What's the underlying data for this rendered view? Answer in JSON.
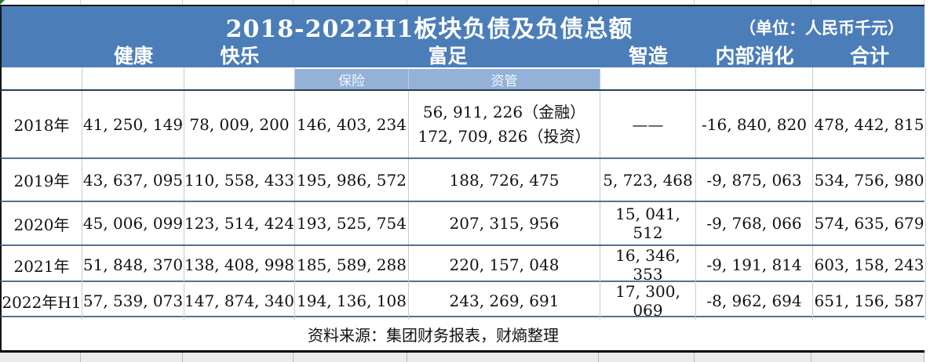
{
  "header": {
    "title": "2018-2022H1板块负债及负债总额",
    "unit": "（单位：人民币千元）"
  },
  "columns": {
    "health": "健康",
    "happiness": "快乐",
    "wealth": "富足",
    "manufacturing": "智造",
    "internal": "内部消化",
    "total": "合计"
  },
  "subheaders": {
    "insurance": "保险",
    "asset_management": "资管"
  },
  "rows": [
    {
      "year": "2018年",
      "health": "41, 250, 149",
      "happiness": "78, 009, 200",
      "insurance": "146, 403, 234",
      "asset_line1": "56, 911, 226（金融）",
      "asset_line2": "172, 709, 826（投资）",
      "manufacturing": "——",
      "internal": "-16, 840, 820",
      "total": "478, 442, 815"
    },
    {
      "year": "2019年",
      "health": "43, 637, 095",
      "happiness": "110, 558, 433",
      "insurance": "195, 986, 572",
      "asset": "188, 726, 475",
      "manufacturing": "5, 723, 468",
      "internal": "-9, 875, 063",
      "total": "534, 756, 980"
    },
    {
      "year": "2020年",
      "health": "45, 006, 099",
      "happiness": "123, 514, 424",
      "insurance": "193, 525, 754",
      "asset": "207, 315, 956",
      "manufacturing": "15, 041, 512",
      "internal": "-9, 768, 066",
      "total": "574, 635, 679"
    },
    {
      "year": "2021年",
      "health": "51, 848, 370",
      "happiness": "138, 408, 998",
      "insurance": "185, 589, 288",
      "asset": "220, 157, 048",
      "manufacturing": "16, 346, 353",
      "internal": "-9, 191, 814",
      "total": "603, 158, 243"
    },
    {
      "year": "2022年H1",
      "health": "57, 539, 073",
      "happiness": "147, 874, 340",
      "insurance": "194, 136, 108",
      "asset": "243, 269, 691",
      "manufacturing": "17, 300, 069",
      "internal": "-8, 962, 694",
      "total": "651, 156, 587"
    }
  ],
  "footer": {
    "source": "资料来源：集团财务报表，财熵整理"
  },
  "colors": {
    "header_blue": "#4b7db9",
    "subheader_blue": "#94b1d8",
    "row_separator": "#537191",
    "dark_border": "#141414",
    "corner_artifact_green": "#217a36"
  },
  "chart_data": {
    "type": "table",
    "title": "2018-2022H1板块负债及负债总额",
    "unit": "人民币千元",
    "columns": [
      "健康",
      "快乐",
      "富足-保险",
      "富足-资管",
      "智造",
      "内部消化",
      "合计"
    ],
    "row_labels": [
      "2018年",
      "2019年",
      "2020年",
      "2021年",
      "2022年H1"
    ],
    "rows": [
      [
        41250149,
        78009200,
        146403234,
        "56911226（金融）；172709826（投资）",
        "——",
        -16840820,
        478442815
      ],
      [
        43637095,
        110558433,
        195986572,
        188726475,
        5723468,
        -9875063,
        534756980
      ],
      [
        45006099,
        123514424,
        193525754,
        207315956,
        15041512,
        -9768066,
        574635679
      ],
      [
        51848370,
        138408998,
        185589288,
        220157048,
        16346353,
        -9191814,
        603158243
      ],
      [
        57539073,
        147874340,
        194136108,
        243269691,
        17300069,
        -8962694,
        651156587
      ]
    ],
    "source": "资料来源：集团财务报表，财熵整理"
  }
}
